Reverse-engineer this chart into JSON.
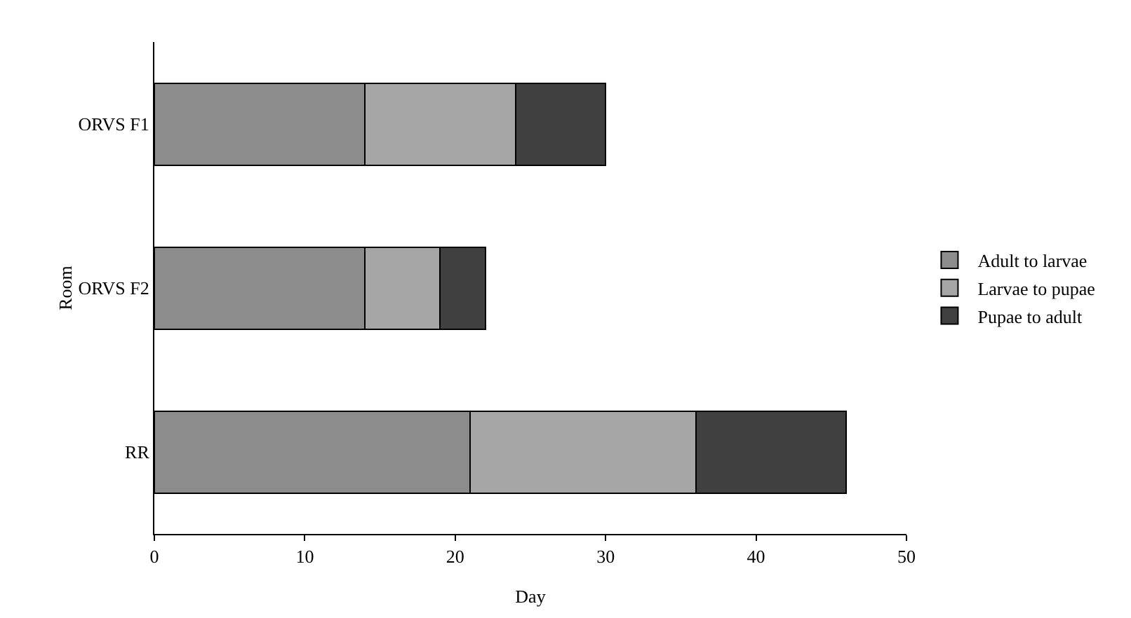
{
  "chart_data": {
    "type": "bar",
    "orientation": "horizontal",
    "stacked": true,
    "xlabel": "Day",
    "ylabel": "Room",
    "categories": [
      "ORVS F1",
      "ORVS F2",
      "RR"
    ],
    "xlim": [
      0,
      50
    ],
    "xticks": [
      0,
      10,
      20,
      30,
      40,
      50
    ],
    "grid": false,
    "legend": "right",
    "series": [
      {
        "name": "Adult to larvae",
        "color": "#8c8c8c",
        "values": [
          14,
          14,
          21
        ]
      },
      {
        "name": "Larvae to pupae",
        "color": "#a6a6a6",
        "values": [
          10,
          5,
          15
        ]
      },
      {
        "name": "Pupae to adult",
        "color": "#404040",
        "values": [
          6,
          3,
          10
        ]
      }
    ]
  }
}
